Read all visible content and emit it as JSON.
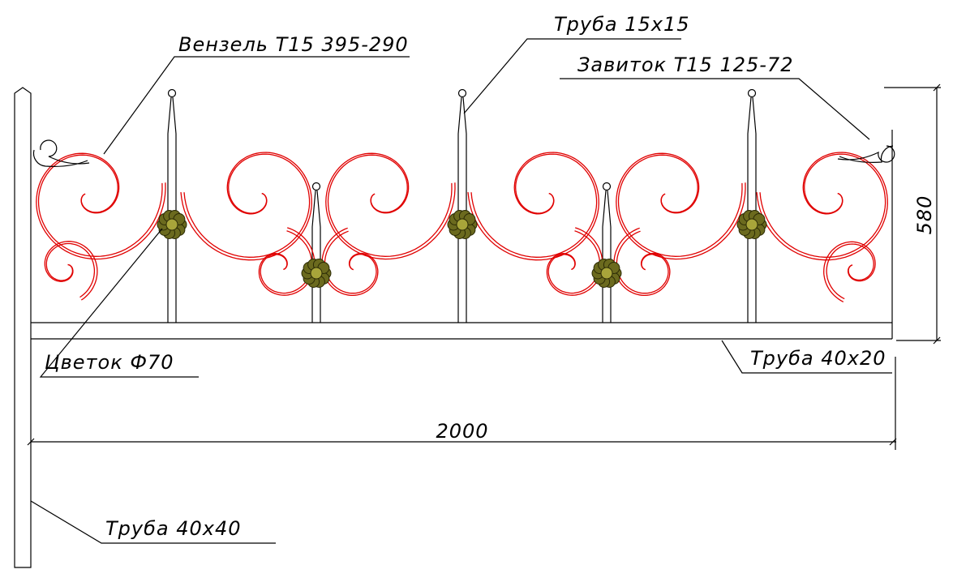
{
  "callouts": [
    "Вензель Т15 395-290",
    "Труба 15х15",
    "Завиток Т15 125-72",
    "Цветок Ф70",
    "Труба 40х20",
    "Труба 40х40"
  ],
  "dimensions": {
    "width": "2000",
    "height": "580"
  }
}
